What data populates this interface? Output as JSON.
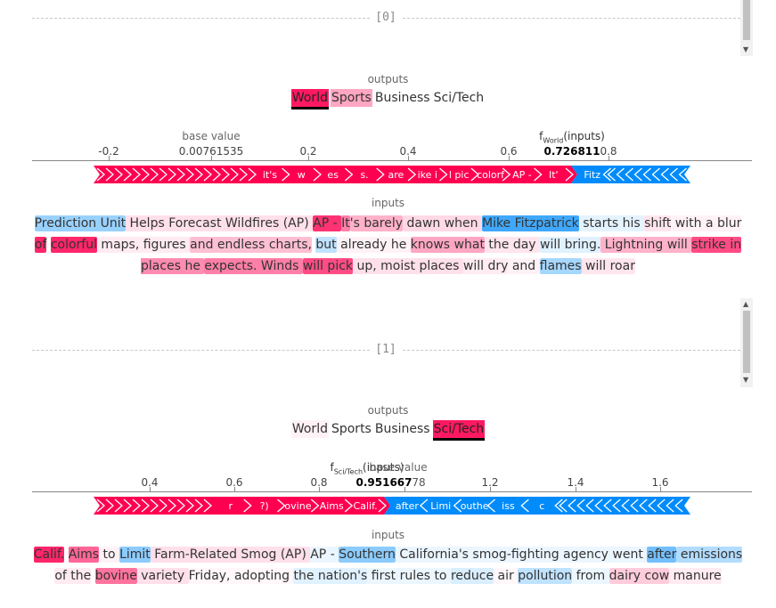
{
  "colors": {
    "pos": "#ff0051",
    "neg": "#008bfb"
  },
  "panels": [
    {
      "index_label": "[0]",
      "outputs_title": "outputs",
      "inputs_title": "inputs",
      "classes": [
        {
          "label": "World",
          "bg": "#ff0051",
          "a": 0.9,
          "selected": true
        },
        {
          "label": "Sports",
          "bg": "#ff0051",
          "a": 0.35,
          "selected": false
        },
        {
          "label": "Business",
          "bg": "",
          "a": 0,
          "selected": false
        },
        {
          "label": "Sci/Tech",
          "bg": "",
          "a": 0,
          "selected": false
        }
      ],
      "axis": {
        "ticks": [
          "-0.2",
          "0.2",
          "0.4",
          "0.6",
          "0.8"
        ],
        "base_label": "base value",
        "base_value": "0.00761535",
        "f_label": "f",
        "f_sub": "World",
        "f_suffix": "(inputs)",
        "f_value": "0.726811"
      },
      "force_pos": [
        "it's",
        "w",
        "es",
        "s.",
        "are",
        "ike i",
        "l pic",
        "colorf",
        "AP -",
        "It'"
      ],
      "force_neg": [
        "Fitz"
      ],
      "text": [
        {
          "t": "Prediction Unit",
          "c": "neg",
          "a": 0.4
        },
        {
          "t": " Helps Forecast Wildfires (AP) ",
          "c": "pos",
          "a": 0.12
        },
        {
          "t": "AP - ",
          "c": "pos",
          "a": 0.8
        },
        {
          "t": "It",
          "c": "pos",
          "a": 0.5
        },
        {
          "t": "'s barely",
          "c": "pos",
          "a": 0.3
        },
        {
          "t": " dawn when ",
          "c": "pos",
          "a": 0.15
        },
        {
          "t": "Mike Fitzpatrick",
          "c": "neg",
          "a": 0.75
        },
        {
          "t": " starts his ",
          "c": "neg",
          "a": 0.1
        },
        {
          "t": "shift",
          "c": "pos",
          "a": 0.1
        },
        {
          "t": " with a blur ",
          "c": "pos",
          "a": 0.05
        },
        {
          "t": "of",
          "c": "pos",
          "a": 0.85
        },
        {
          "t": " ",
          "c": "pos",
          "a": 0
        },
        {
          "t": "colorful",
          "c": "pos",
          "a": 0.85
        },
        {
          "t": " maps, figures ",
          "c": "pos",
          "a": 0.08
        },
        {
          "t": "and endless charts,",
          "c": "pos",
          "a": 0.25
        },
        {
          "t": " ",
          "c": "pos",
          "a": 0
        },
        {
          "t": "but",
          "c": "neg",
          "a": 0.25
        },
        {
          "t": " already he ",
          "c": "pos",
          "a": 0.05
        },
        {
          "t": "knows what",
          "c": "pos",
          "a": 0.35
        },
        {
          "t": " the day ",
          "c": "pos",
          "a": 0.1
        },
        {
          "t": "will bring.",
          "c": "neg",
          "a": 0.12
        },
        {
          "t": " Lightning will ",
          "c": "pos",
          "a": 0.3
        },
        {
          "t": "strike in",
          "c": "pos",
          "a": 0.7
        },
        {
          "t": " places he ",
          "c": "pos",
          "a": 0.45
        },
        {
          "t": "expects. Winds ",
          "c": "pos",
          "a": 0.5
        },
        {
          "t": "will pick",
          "c": "pos",
          "a": 0.7
        },
        {
          "t": " up, moist places ",
          "c": "pos",
          "a": 0.12
        },
        {
          "t": "will dry",
          "c": "pos",
          "a": 0.08
        },
        {
          "t": " and ",
          "c": "pos",
          "a": 0.05
        },
        {
          "t": "flames",
          "c": "neg",
          "a": 0.35
        },
        {
          "t": " will roar",
          "c": "pos",
          "a": 0.1
        }
      ]
    },
    {
      "index_label": "[1]",
      "outputs_title": "outputs",
      "inputs_title": "inputs",
      "classes": [
        {
          "label": "World",
          "bg": "#ff0051",
          "a": 0.05,
          "selected": false
        },
        {
          "label": "Sports",
          "bg": "",
          "a": 0,
          "selected": false
        },
        {
          "label": "Business",
          "bg": "",
          "a": 0,
          "selected": false
        },
        {
          "label": "Sci/Tech",
          "bg": "#ff0051",
          "a": 0.9,
          "selected": true
        }
      ],
      "axis": {
        "ticks": [
          "0.4",
          "0.6",
          "0.8",
          "1.2",
          "1.4",
          "1.6"
        ],
        "base_label": "base value",
        "base_value": "78",
        "f_label": "f",
        "f_sub": "Sci/Tech",
        "f_suffix": "(inputs)",
        "f_value": "0.951667"
      },
      "force_pos": [
        "r",
        "?)",
        "ovine",
        "Aims",
        "Calif."
      ],
      "force_neg": [
        "after",
        "Limi",
        "outhe",
        "iss",
        "c"
      ],
      "text": [
        {
          "t": "Calif.",
          "c": "pos",
          "a": 0.85
        },
        {
          "t": " ",
          "c": "pos",
          "a": 0
        },
        {
          "t": "Aims",
          "c": "pos",
          "a": 0.6
        },
        {
          "t": " to ",
          "c": "pos",
          "a": 0.05
        },
        {
          "t": "Limit",
          "c": "neg",
          "a": 0.45
        },
        {
          "t": " Farm-Related Smog (AP) ",
          "c": "pos",
          "a": 0.12
        },
        {
          "t": "AP - ",
          "c": "neg",
          "a": 0.08
        },
        {
          "t": "Southern",
          "c": "neg",
          "a": 0.45
        },
        {
          "t": " California's smog-fighting agency went ",
          "c": "neg",
          "a": 0.08
        },
        {
          "t": "after",
          "c": "neg",
          "a": 0.55
        },
        {
          "t": " emissions ",
          "c": "neg",
          "a": 0.3
        },
        {
          "t": "of the",
          "c": "pos",
          "a": 0.08
        },
        {
          "t": " ",
          "c": "pos",
          "a": 0
        },
        {
          "t": "bovine",
          "c": "pos",
          "a": 0.55
        },
        {
          "t": " variety ",
          "c": "pos",
          "a": 0.12
        },
        {
          "t": "Friday, adopting ",
          "c": "pos",
          "a": 0.03
        },
        {
          "t": "the nation's",
          "c": "neg",
          "a": 0.12
        },
        {
          "t": " first rules to ",
          "c": "neg",
          "a": 0.08
        },
        {
          "t": "reduce",
          "c": "neg",
          "a": 0.15
        },
        {
          "t": " air ",
          "c": "pos",
          "a": 0.03
        },
        {
          "t": "pollution",
          "c": "neg",
          "a": 0.25
        },
        {
          "t": " from ",
          "c": "neg",
          "a": 0.08
        },
        {
          "t": "dairy cow",
          "c": "pos",
          "a": 0.2
        },
        {
          "t": " manure",
          "c": "pos",
          "a": 0.08
        }
      ]
    }
  ]
}
